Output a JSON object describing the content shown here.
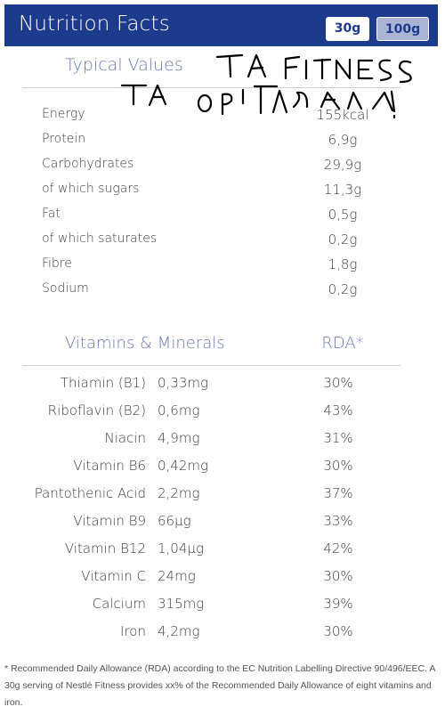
{
  "header": {
    "title": "Nutrition Facts",
    "buttons": [
      {
        "label": "30g",
        "selected": true
      },
      {
        "label": "100g",
        "selected": false
      }
    ]
  },
  "typical_values": {
    "title": "Typical Values",
    "rows": [
      {
        "label": "Energy",
        "value": "155kcal"
      },
      {
        "label": "Protein",
        "value": "6,9g"
      },
      {
        "label": "Carbohydrates",
        "value": "29,9g"
      },
      {
        "label": "of which sugars",
        "value": "11,3g"
      },
      {
        "label": "Fat",
        "value": "0,5g"
      },
      {
        "label": "of which saturates",
        "value": "0,2g"
      },
      {
        "label": "Fibre",
        "value": "1,8g"
      },
      {
        "label": "Sodium",
        "value": "0,2g"
      }
    ]
  },
  "vitamins": {
    "title": "Vitamins & Minerals",
    "rda_header": "RDA*",
    "rows": [
      {
        "name": "Thiamin (B1)",
        "amount": "0,33mg",
        "rda": "30%"
      },
      {
        "name": "Riboflavin (B2)",
        "amount": "0,6mg",
        "rda": "43%"
      },
      {
        "name": "Niacin",
        "amount": "4,9mg",
        "rda": "31%"
      },
      {
        "name": "Vitamin B6",
        "amount": "0,42mg",
        "rda": "30%"
      },
      {
        "name": "Pantothenic Acid",
        "amount": "2,2mg",
        "rda": "37%"
      },
      {
        "name": "Vitamin B9",
        "amount": "66µg",
        "rda": "33%"
      },
      {
        "name": "Vitamin B12",
        "amount": "1,04µg",
        "rda": "42%"
      },
      {
        "name": "Vitamin C",
        "amount": "24mg",
        "rda": "30%"
      },
      {
        "name": "Calcium",
        "amount": "315mg",
        "rda": "39%"
      },
      {
        "name": "Iron",
        "amount": "4,2mg",
        "rda": "30%"
      }
    ]
  },
  "footnote": "* Recommended Daily Allowance (RDA) according to the EC Nutrition Labelling Directive 90/496/EEC. A 30g serving of Nestlé Fitness provides xx% of the Recommended Daily Allowance of eight vitamins and iron.",
  "handwriting": {
    "line1": "ΤΑ FITNESS",
    "line2": "ΤΑ ΟΡΙΓΙΝΑΛ!"
  },
  "colors": {
    "header_bg": "#1d3b8c",
    "accent_text": "#6d7ab4",
    "button_selected_bg": "#ffffff",
    "button_unselected_bg": "#aab5d6"
  }
}
